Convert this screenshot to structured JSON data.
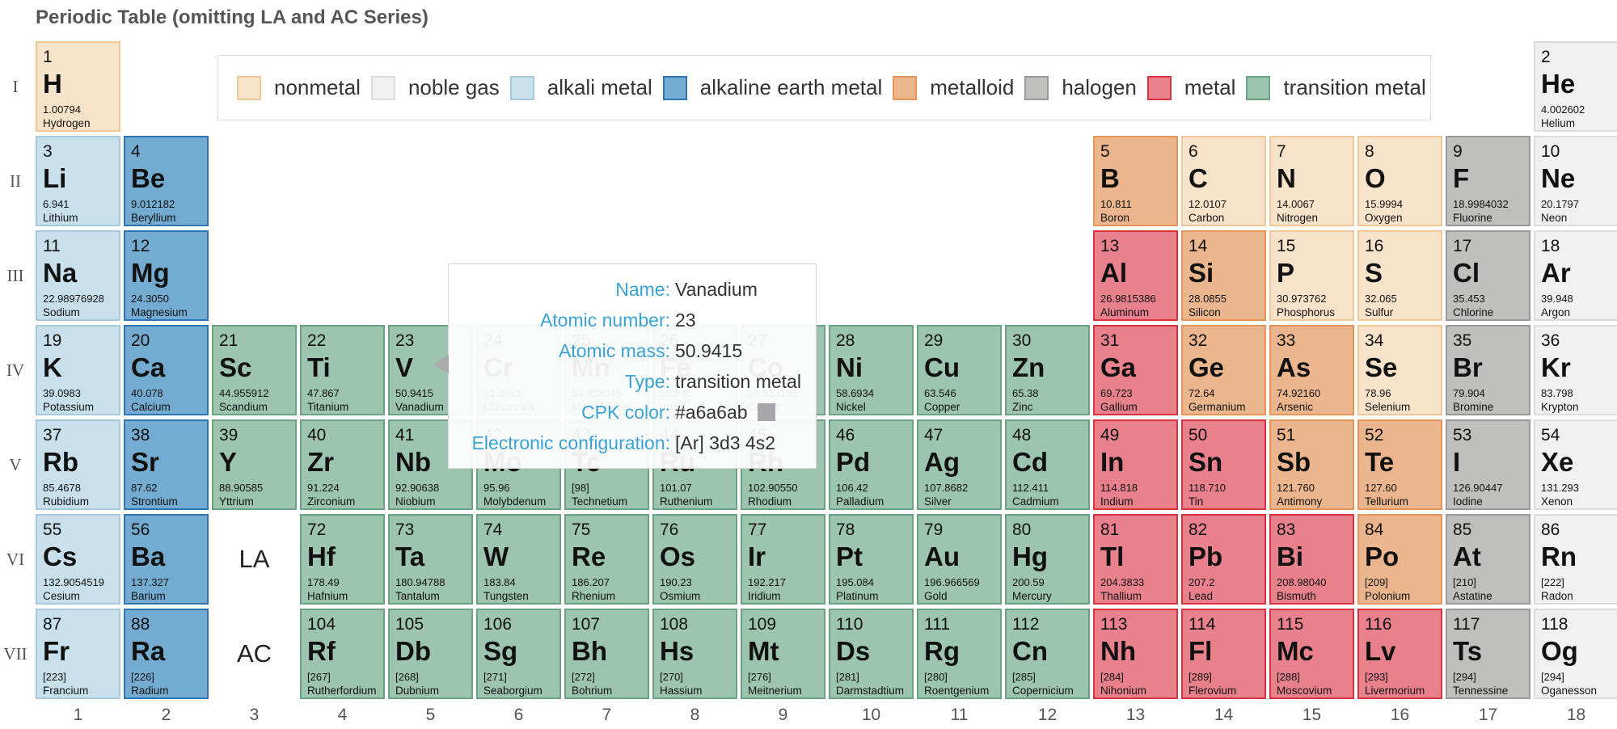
{
  "title": "Periodic Table (omitting LA and AC Series)",
  "chart_data": {
    "type": "table",
    "periods": [
      "I",
      "II",
      "III",
      "IV",
      "V",
      "VI",
      "VII"
    ],
    "groups": [
      "1",
      "2",
      "3",
      "4",
      "5",
      "6",
      "7",
      "8",
      "9",
      "10",
      "11",
      "12",
      "13",
      "14",
      "15",
      "16",
      "17",
      "18"
    ],
    "placeholders": [
      {
        "label": "LA",
        "group": 3,
        "period": 6
      },
      {
        "label": "AC",
        "group": 3,
        "period": 7
      }
    ],
    "legend": [
      {
        "label": "nonmetal",
        "fill": "#f7e3c9",
        "stroke": "#efc89a"
      },
      {
        "label": "noble gas",
        "fill": "#f0f0f0",
        "stroke": "#dcdcdc"
      },
      {
        "label": "alkali metal",
        "fill": "#c8e0eb",
        "stroke": "#a6cadb"
      },
      {
        "label": "alkaline earth metal",
        "fill": "#74acd1",
        "stroke": "#2f74b5"
      },
      {
        "label": "metalloid",
        "fill": "#ebb68d",
        "stroke": "#e5955a"
      },
      {
        "label": "halogen",
        "fill": "#bfbfbd",
        "stroke": "#999999"
      },
      {
        "label": "metal",
        "fill": "#e8818c",
        "stroke": "#d8333f"
      },
      {
        "label": "transition metal",
        "fill": "#9cc4ae",
        "stroke": "#6aa283"
      }
    ],
    "elements": [
      {
        "n": 1,
        "sym": "H",
        "mass": "1.00794",
        "name": "Hydrogen",
        "type": "nonmetal",
        "group": 1,
        "period": 1
      },
      {
        "n": 2,
        "sym": "He",
        "mass": "4.002602",
        "name": "Helium",
        "type": "noble gas",
        "group": 18,
        "period": 1
      },
      {
        "n": 3,
        "sym": "Li",
        "mass": "6.941",
        "name": "Lithium",
        "type": "alkali metal",
        "group": 1,
        "period": 2
      },
      {
        "n": 4,
        "sym": "Be",
        "mass": "9.012182",
        "name": "Beryllium",
        "type": "alkaline earth metal",
        "group": 2,
        "period": 2
      },
      {
        "n": 5,
        "sym": "B",
        "mass": "10.811",
        "name": "Boron",
        "type": "metalloid",
        "group": 13,
        "period": 2
      },
      {
        "n": 6,
        "sym": "C",
        "mass": "12.0107",
        "name": "Carbon",
        "type": "nonmetal",
        "group": 14,
        "period": 2
      },
      {
        "n": 7,
        "sym": "N",
        "mass": "14.0067",
        "name": "Nitrogen",
        "type": "nonmetal",
        "group": 15,
        "period": 2
      },
      {
        "n": 8,
        "sym": "O",
        "mass": "15.9994",
        "name": "Oxygen",
        "type": "nonmetal",
        "group": 16,
        "period": 2
      },
      {
        "n": 9,
        "sym": "F",
        "mass": "18.9984032",
        "name": "Fluorine",
        "type": "halogen",
        "group": 17,
        "period": 2
      },
      {
        "n": 10,
        "sym": "Ne",
        "mass": "20.1797",
        "name": "Neon",
        "type": "noble gas",
        "group": 18,
        "period": 2
      },
      {
        "n": 11,
        "sym": "Na",
        "mass": "22.98976928",
        "name": "Sodium",
        "type": "alkali metal",
        "group": 1,
        "period": 3
      },
      {
        "n": 12,
        "sym": "Mg",
        "mass": "24.3050",
        "name": "Magnesium",
        "type": "alkaline earth metal",
        "group": 2,
        "period": 3
      },
      {
        "n": 13,
        "sym": "Al",
        "mass": "26.9815386",
        "name": "Aluminum",
        "type": "metal",
        "group": 13,
        "period": 3
      },
      {
        "n": 14,
        "sym": "Si",
        "mass": "28.0855",
        "name": "Silicon",
        "type": "metalloid",
        "group": 14,
        "period": 3
      },
      {
        "n": 15,
        "sym": "P",
        "mass": "30.973762",
        "name": "Phosphorus",
        "type": "nonmetal",
        "group": 15,
        "period": 3
      },
      {
        "n": 16,
        "sym": "S",
        "mass": "32.065",
        "name": "Sulfur",
        "type": "nonmetal",
        "group": 16,
        "period": 3
      },
      {
        "n": 17,
        "sym": "Cl",
        "mass": "35.453",
        "name": "Chlorine",
        "type": "halogen",
        "group": 17,
        "period": 3
      },
      {
        "n": 18,
        "sym": "Ar",
        "mass": "39.948",
        "name": "Argon",
        "type": "noble gas",
        "group": 18,
        "period": 3
      },
      {
        "n": 19,
        "sym": "K",
        "mass": "39.0983",
        "name": "Potassium",
        "type": "alkali metal",
        "group": 1,
        "period": 4
      },
      {
        "n": 20,
        "sym": "Ca",
        "mass": "40.078",
        "name": "Calcium",
        "type": "alkaline earth metal",
        "group": 2,
        "period": 4
      },
      {
        "n": 21,
        "sym": "Sc",
        "mass": "44.955912",
        "name": "Scandium",
        "type": "transition metal",
        "group": 3,
        "period": 4
      },
      {
        "n": 22,
        "sym": "Ti",
        "mass": "47.867",
        "name": "Titanium",
        "type": "transition metal",
        "group": 4,
        "period": 4
      },
      {
        "n": 23,
        "sym": "V",
        "mass": "50.9415",
        "name": "Vanadium",
        "type": "transition metal",
        "group": 5,
        "period": 4
      },
      {
        "n": 24,
        "sym": "Cr",
        "mass": "51.9961",
        "name": "Chromium",
        "type": "transition metal",
        "group": 6,
        "period": 4
      },
      {
        "n": 25,
        "sym": "Mn",
        "mass": "54.938045",
        "name": "Manganese",
        "type": "transition metal",
        "group": 7,
        "period": 4
      },
      {
        "n": 26,
        "sym": "Fe",
        "mass": "55.845",
        "name": "Iron",
        "type": "transition metal",
        "group": 8,
        "period": 4
      },
      {
        "n": 27,
        "sym": "Co",
        "mass": "58.933195",
        "name": "Cobalt",
        "type": "transition metal",
        "group": 9,
        "period": 4
      },
      {
        "n": 28,
        "sym": "Ni",
        "mass": "58.6934",
        "name": "Nickel",
        "type": "transition metal",
        "group": 10,
        "period": 4
      },
      {
        "n": 29,
        "sym": "Cu",
        "mass": "63.546",
        "name": "Copper",
        "type": "transition metal",
        "group": 11,
        "period": 4
      },
      {
        "n": 30,
        "sym": "Zn",
        "mass": "65.38",
        "name": "Zinc",
        "type": "transition metal",
        "group": 12,
        "period": 4
      },
      {
        "n": 31,
        "sym": "Ga",
        "mass": "69.723",
        "name": "Gallium",
        "type": "metal",
        "group": 13,
        "period": 4
      },
      {
        "n": 32,
        "sym": "Ge",
        "mass": "72.64",
        "name": "Germanium",
        "type": "metalloid",
        "group": 14,
        "period": 4
      },
      {
        "n": 33,
        "sym": "As",
        "mass": "74.92160",
        "name": "Arsenic",
        "type": "metalloid",
        "group": 15,
        "period": 4
      },
      {
        "n": 34,
        "sym": "Se",
        "mass": "78.96",
        "name": "Selenium",
        "type": "nonmetal",
        "group": 16,
        "period": 4
      },
      {
        "n": 35,
        "sym": "Br",
        "mass": "79.904",
        "name": "Bromine",
        "type": "halogen",
        "group": 17,
        "period": 4
      },
      {
        "n": 36,
        "sym": "Kr",
        "mass": "83.798",
        "name": "Krypton",
        "type": "noble gas",
        "group": 18,
        "period": 4
      },
      {
        "n": 37,
        "sym": "Rb",
        "mass": "85.4678",
        "name": "Rubidium",
        "type": "alkali metal",
        "group": 1,
        "period": 5
      },
      {
        "n": 38,
        "sym": "Sr",
        "mass": "87.62",
        "name": "Strontium",
        "type": "alkaline earth metal",
        "group": 2,
        "period": 5
      },
      {
        "n": 39,
        "sym": "Y",
        "mass": "88.90585",
        "name": "Yttrium",
        "type": "transition metal",
        "group": 3,
        "period": 5
      },
      {
        "n": 40,
        "sym": "Zr",
        "mass": "91.224",
        "name": "Zirconium",
        "type": "transition metal",
        "group": 4,
        "period": 5
      },
      {
        "n": 41,
        "sym": "Nb",
        "mass": "92.90638",
        "name": "Niobium",
        "type": "transition metal",
        "group": 5,
        "period": 5
      },
      {
        "n": 42,
        "sym": "Mo",
        "mass": "95.96",
        "name": "Molybdenum",
        "type": "transition metal",
        "group": 6,
        "period": 5
      },
      {
        "n": 43,
        "sym": "Tc",
        "mass": "[98]",
        "name": "Technetium",
        "type": "transition metal",
        "group": 7,
        "period": 5
      },
      {
        "n": 44,
        "sym": "Ru",
        "mass": "101.07",
        "name": "Ruthenium",
        "type": "transition metal",
        "group": 8,
        "period": 5
      },
      {
        "n": 45,
        "sym": "Rh",
        "mass": "102.90550",
        "name": "Rhodium",
        "type": "transition metal",
        "group": 9,
        "period": 5
      },
      {
        "n": 46,
        "sym": "Pd",
        "mass": "106.42",
        "name": "Palladium",
        "type": "transition metal",
        "group": 10,
        "period": 5
      },
      {
        "n": 47,
        "sym": "Ag",
        "mass": "107.8682",
        "name": "Silver",
        "type": "transition metal",
        "group": 11,
        "period": 5
      },
      {
        "n": 48,
        "sym": "Cd",
        "mass": "112.411",
        "name": "Cadmium",
        "type": "transition metal",
        "group": 12,
        "period": 5
      },
      {
        "n": 49,
        "sym": "In",
        "mass": "114.818",
        "name": "Indium",
        "type": "metal",
        "group": 13,
        "period": 5
      },
      {
        "n": 50,
        "sym": "Sn",
        "mass": "118.710",
        "name": "Tin",
        "type": "metal",
        "group": 14,
        "period": 5
      },
      {
        "n": 51,
        "sym": "Sb",
        "mass": "121.760",
        "name": "Antimony",
        "type": "metalloid",
        "group": 15,
        "period": 5
      },
      {
        "n": 52,
        "sym": "Te",
        "mass": "127.60",
        "name": "Tellurium",
        "type": "metalloid",
        "group": 16,
        "period": 5
      },
      {
        "n": 53,
        "sym": "I",
        "mass": "126.90447",
        "name": "Iodine",
        "type": "halogen",
        "group": 17,
        "period": 5
      },
      {
        "n": 54,
        "sym": "Xe",
        "mass": "131.293",
        "name": "Xenon",
        "type": "noble gas",
        "group": 18,
        "period": 5
      },
      {
        "n": 55,
        "sym": "Cs",
        "mass": "132.9054519",
        "name": "Cesium",
        "type": "alkali metal",
        "group": 1,
        "period": 6
      },
      {
        "n": 56,
        "sym": "Ba",
        "mass": "137.327",
        "name": "Barium",
        "type": "alkaline earth metal",
        "group": 2,
        "period": 6
      },
      {
        "n": 72,
        "sym": "Hf",
        "mass": "178.49",
        "name": "Hafnium",
        "type": "transition metal",
        "group": 4,
        "period": 6
      },
      {
        "n": 73,
        "sym": "Ta",
        "mass": "180.94788",
        "name": "Tantalum",
        "type": "transition metal",
        "group": 5,
        "period": 6
      },
      {
        "n": 74,
        "sym": "W",
        "mass": "183.84",
        "name": "Tungsten",
        "type": "transition metal",
        "group": 6,
        "period": 6
      },
      {
        "n": 75,
        "sym": "Re",
        "mass": "186.207",
        "name": "Rhenium",
        "type": "transition metal",
        "group": 7,
        "period": 6
      },
      {
        "n": 76,
        "sym": "Os",
        "mass": "190.23",
        "name": "Osmium",
        "type": "transition metal",
        "group": 8,
        "period": 6
      },
      {
        "n": 77,
        "sym": "Ir",
        "mass": "192.217",
        "name": "Iridium",
        "type": "transition metal",
        "group": 9,
        "period": 6
      },
      {
        "n": 78,
        "sym": "Pt",
        "mass": "195.084",
        "name": "Platinum",
        "type": "transition metal",
        "group": 10,
        "period": 6
      },
      {
        "n": 79,
        "sym": "Au",
        "mass": "196.966569",
        "name": "Gold",
        "type": "transition metal",
        "group": 11,
        "period": 6
      },
      {
        "n": 80,
        "sym": "Hg",
        "mass": "200.59",
        "name": "Mercury",
        "type": "transition metal",
        "group": 12,
        "period": 6
      },
      {
        "n": 81,
        "sym": "Tl",
        "mass": "204.3833",
        "name": "Thallium",
        "type": "metal",
        "group": 13,
        "period": 6
      },
      {
        "n": 82,
        "sym": "Pb",
        "mass": "207.2",
        "name": "Lead",
        "type": "metal",
        "group": 14,
        "period": 6
      },
      {
        "n": 83,
        "sym": "Bi",
        "mass": "208.98040",
        "name": "Bismuth",
        "type": "metal",
        "group": 15,
        "period": 6
      },
      {
        "n": 84,
        "sym": "Po",
        "mass": "[209]",
        "name": "Polonium",
        "type": "metalloid",
        "group": 16,
        "period": 6
      },
      {
        "n": 85,
        "sym": "At",
        "mass": "[210]",
        "name": "Astatine",
        "type": "halogen",
        "group": 17,
        "period": 6
      },
      {
        "n": 86,
        "sym": "Rn",
        "mass": "[222]",
        "name": "Radon",
        "type": "noble gas",
        "group": 18,
        "period": 6
      },
      {
        "n": 87,
        "sym": "Fr",
        "mass": "[223]",
        "name": "Francium",
        "type": "alkali metal",
        "group": 1,
        "period": 7
      },
      {
        "n": 88,
        "sym": "Ra",
        "mass": "[226]",
        "name": "Radium",
        "type": "alkaline earth metal",
        "group": 2,
        "period": 7
      },
      {
        "n": 104,
        "sym": "Rf",
        "mass": "[267]",
        "name": "Rutherfordium",
        "type": "transition metal",
        "group": 4,
        "period": 7
      },
      {
        "n": 105,
        "sym": "Db",
        "mass": "[268]",
        "name": "Dubnium",
        "type": "transition metal",
        "group": 5,
        "period": 7
      },
      {
        "n": 106,
        "sym": "Sg",
        "mass": "[271]",
        "name": "Seaborgium",
        "type": "transition metal",
        "group": 6,
        "period": 7
      },
      {
        "n": 107,
        "sym": "Bh",
        "mass": "[272]",
        "name": "Bohrium",
        "type": "transition metal",
        "group": 7,
        "period": 7
      },
      {
        "n": 108,
        "sym": "Hs",
        "mass": "[270]",
        "name": "Hassium",
        "type": "transition metal",
        "group": 8,
        "period": 7
      },
      {
        "n": 109,
        "sym": "Mt",
        "mass": "[276]",
        "name": "Meitnerium",
        "type": "transition metal",
        "group": 9,
        "period": 7
      },
      {
        "n": 110,
        "sym": "Ds",
        "mass": "[281]",
        "name": "Darmstadtium",
        "type": "transition metal",
        "group": 10,
        "period": 7
      },
      {
        "n": 111,
        "sym": "Rg",
        "mass": "[280]",
        "name": "Roentgenium",
        "type": "transition metal",
        "group": 11,
        "period": 7
      },
      {
        "n": 112,
        "sym": "Cn",
        "mass": "[285]",
        "name": "Copernicium",
        "type": "transition metal",
        "group": 12,
        "period": 7
      },
      {
        "n": 113,
        "sym": "Nh",
        "mass": "[284]",
        "name": "Nihonium",
        "type": "metal",
        "group": 13,
        "period": 7
      },
      {
        "n": 114,
        "sym": "Fl",
        "mass": "[289]",
        "name": "Flerovium",
        "type": "metal",
        "group": 14,
        "period": 7
      },
      {
        "n": 115,
        "sym": "Mc",
        "mass": "[288]",
        "name": "Moscovium",
        "type": "metal",
        "group": 15,
        "period": 7
      },
      {
        "n": 116,
        "sym": "Lv",
        "mass": "[293]",
        "name": "Livermorium",
        "type": "metal",
        "group": 16,
        "period": 7
      },
      {
        "n": 117,
        "sym": "Ts",
        "mass": "[294]",
        "name": "Tennessine",
        "type": "halogen",
        "group": 17,
        "period": 7
      },
      {
        "n": 118,
        "sym": "Og",
        "mass": "[294]",
        "name": "Oganesson",
        "type": "noble gas",
        "group": 18,
        "period": 7
      }
    ]
  },
  "tooltip": {
    "rows": [
      {
        "key": "Name:",
        "value": "Vanadium"
      },
      {
        "key": "Atomic number:",
        "value": "23"
      },
      {
        "key": "Atomic mass:",
        "value": "50.9415"
      },
      {
        "key": "Type:",
        "value": "transition metal"
      },
      {
        "key": "CPK color:",
        "value": "#a6a6ab"
      },
      {
        "key": "Electronic configuration:",
        "value": "[Ar] 3d3 4s2"
      }
    ],
    "swatch_color": "#a6a6ab"
  }
}
